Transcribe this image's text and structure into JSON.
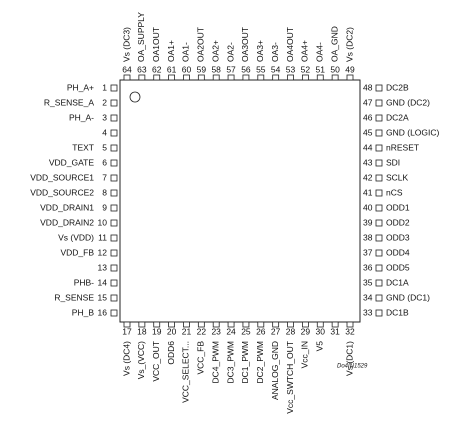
{
  "pins": [
    {
      "number": 1,
      "label": "PH_A+"
    },
    {
      "number": 2,
      "label": "R_SENSE_A"
    },
    {
      "number": 3,
      "label": "PH_A-"
    },
    {
      "number": 4
    },
    {
      "number": 5,
      "label": "TEXT"
    },
    {
      "number": 6,
      "label": "VDD_GATE"
    },
    {
      "number": 7,
      "label": "VDD_SOURCE1"
    },
    {
      "number": 8,
      "label": "VDD_SOURCE2"
    },
    {
      "number": 9,
      "label": "VDD_DRAIN1"
    },
    {
      "number": 10,
      "label": "VDD_DRAIN2"
    },
    {
      "number": 11,
      "label": "Vs (VDD)"
    },
    {
      "number": 12,
      "label": "VDD_FB"
    },
    {
      "number": 13
    },
    {
      "number": 14,
      "label": "PHB-"
    },
    {
      "number": 15,
      "label": "R_SENSE"
    },
    {
      "number": 16,
      "label": "PH_B"
    },
    {
      "number": 17,
      "label": "Vs (DC4)"
    },
    {
      "number": 18,
      "label": "Vs_(VCC)"
    },
    {
      "number": 19,
      "label": "VCC_OUT"
    },
    {
      "number": 20,
      "label": "ODD6"
    },
    {
      "number": 21,
      "label": "VCC_SELECT..."
    },
    {
      "number": 22,
      "label": "VCC_FB"
    },
    {
      "number": 23,
      "label": "DC4_PWM"
    },
    {
      "number": 24,
      "label": "DC3_PWM"
    },
    {
      "number": 25,
      "label": "DC1_PWM"
    },
    {
      "number": 26,
      "label": "DC2_PWM"
    },
    {
      "number": 27,
      "label": "ANALOG_GND"
    },
    {
      "number": 28,
      "label": "Vcc_SWTCH_OUT"
    },
    {
      "number": 29,
      "label": "Vcc_IN"
    },
    {
      "number": 30,
      "label": "V5"
    },
    {
      "number": 31
    },
    {
      "number": 32,
      "label": "Vs (DC1)"
    },
    {
      "number": 33,
      "label": "DC1B"
    },
    {
      "number": 34,
      "label": "GND (DC1)"
    },
    {
      "number": 35,
      "label": "DC1A"
    },
    {
      "number": 36,
      "label": "ODD5"
    },
    {
      "number": 37,
      "label": "ODD4"
    },
    {
      "number": 38,
      "label": "ODD3"
    },
    {
      "number": 39,
      "label": "ODD2"
    },
    {
      "number": 40,
      "label": "ODD1"
    },
    {
      "number": 41,
      "label": "nCS"
    },
    {
      "number": 42,
      "label": "SCLK"
    },
    {
      "number": 43,
      "label": "SDI"
    },
    {
      "number": 44,
      "label": "nRESET"
    },
    {
      "number": 45,
      "label": "GND (LOGIC)"
    },
    {
      "number": 46,
      "label": "DC2A"
    },
    {
      "number": 47,
      "label": "GND (DC2)"
    },
    {
      "number": 48,
      "label": "DC2B"
    },
    {
      "number": 49,
      "label": "Vs (DC2)"
    },
    {
      "number": 50,
      "label": "OA_GND"
    },
    {
      "number": 51,
      "label": "OA4-"
    },
    {
      "number": 52,
      "label": "OA4+"
    },
    {
      "number": 53,
      "label": "OA4OUT"
    },
    {
      "number": 54,
      "label": "OA3-"
    },
    {
      "number": 55,
      "label": "OA3+"
    },
    {
      "number": 56,
      "label": "OA3OUT"
    },
    {
      "number": 57,
      "label": "OA2-"
    },
    {
      "number": 58,
      "label": "OA2+"
    },
    {
      "number": 59,
      "label": "OA2OUT"
    },
    {
      "number": 60,
      "label": "OA1-"
    },
    {
      "number": 61,
      "label": "OA1+"
    },
    {
      "number": 62,
      "label": "OA1OUT"
    },
    {
      "number": 63,
      "label": "OA_SUPPLY"
    },
    {
      "number": 64,
      "label": "Vs (DC3)"
    }
  ],
  "drawing_code": "Do4IN1529"
}
